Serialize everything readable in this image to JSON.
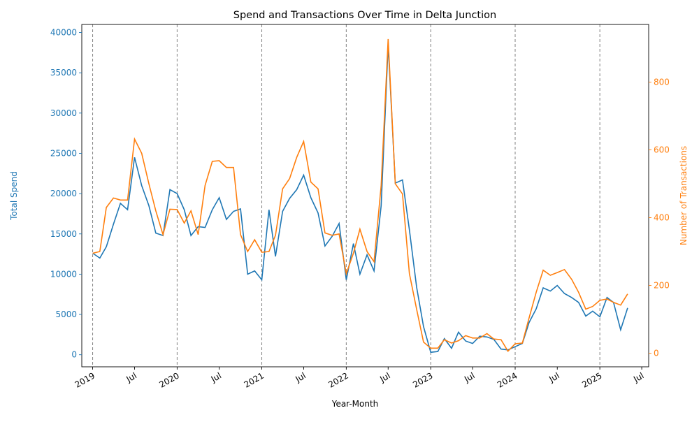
{
  "chart_data": {
    "type": "line",
    "title": "Spend and Transactions Over Time in Delta Junction",
    "xlabel": "Year-Month",
    "ylabel_left": "Total Spend",
    "ylabel_right": "Number of Transactions",
    "ylim_left": [
      -1500,
      41000
    ],
    "ylim_right": [
      -40,
      970
    ],
    "xlim": [
      "2018-11-15",
      "2025-07-31"
    ],
    "x_ticks": [
      {
        "date": "2019-01-01",
        "label": "2019"
      },
      {
        "date": "2019-07-01",
        "label": "Jul"
      },
      {
        "date": "2020-01-01",
        "label": "2020"
      },
      {
        "date": "2020-07-01",
        "label": "Jul"
      },
      {
        "date": "2021-01-01",
        "label": "2021"
      },
      {
        "date": "2021-07-01",
        "label": "Jul"
      },
      {
        "date": "2022-01-01",
        "label": "2022"
      },
      {
        "date": "2022-07-01",
        "label": "Jul"
      },
      {
        "date": "2023-01-01",
        "label": "2023"
      },
      {
        "date": "2023-07-01",
        "label": "Jul"
      },
      {
        "date": "2024-01-01",
        "label": "2024"
      },
      {
        "date": "2024-07-01",
        "label": "Jul"
      },
      {
        "date": "2025-01-01",
        "label": "2025"
      },
      {
        "date": "2025-07-01",
        "label": "Jul"
      }
    ],
    "y_ticks_left": [
      0,
      5000,
      10000,
      15000,
      20000,
      25000,
      30000,
      35000,
      40000
    ],
    "y_ticks_right": [
      0,
      200,
      400,
      600,
      800
    ],
    "year_lines": [
      "2019-01-01",
      "2020-01-01",
      "2021-01-01",
      "2022-01-01",
      "2023-01-01",
      "2024-01-01",
      "2025-01-01"
    ],
    "colors": {
      "spend": "#1f77b4",
      "transactions": "#ff7f0e",
      "year_line": "#808080"
    },
    "x": [
      "2019-01",
      "2019-02",
      "2019-03",
      "2019-04",
      "2019-05",
      "2019-06",
      "2019-07",
      "2019-08",
      "2019-09",
      "2019-10",
      "2019-11",
      "2019-12",
      "2020-01",
      "2020-02",
      "2020-03",
      "2020-04",
      "2020-05",
      "2020-06",
      "2020-07",
      "2020-08",
      "2020-09",
      "2020-10",
      "2020-11",
      "2020-12",
      "2021-01",
      "2021-02",
      "2021-03",
      "2021-04",
      "2021-05",
      "2021-06",
      "2021-07",
      "2021-08",
      "2021-09",
      "2021-10",
      "2021-11",
      "2021-12",
      "2022-01",
      "2022-02",
      "2022-03",
      "2022-04",
      "2022-05",
      "2022-06",
      "2022-07",
      "2022-08",
      "2022-09",
      "2022-10",
      "2022-11",
      "2022-12",
      "2023-01",
      "2023-02",
      "2023-03",
      "2023-04",
      "2023-05",
      "2023-06",
      "2023-07",
      "2023-08",
      "2023-09",
      "2023-10",
      "2023-11",
      "2023-12",
      "2024-01",
      "2024-02",
      "2024-03",
      "2024-04",
      "2024-05",
      "2024-06",
      "2024-07",
      "2024-08",
      "2024-09",
      "2024-10",
      "2024-11",
      "2024-12",
      "2025-01",
      "2025-02",
      "2025-03",
      "2025-04",
      "2025-05"
    ],
    "series": [
      {
        "name": "Total Spend",
        "axis": "left",
        "values": [
          12600,
          12000,
          13400,
          16200,
          18800,
          18000,
          24500,
          21000,
          18500,
          15100,
          14800,
          20500,
          20000,
          18000,
          14800,
          15900,
          15800,
          18000,
          19500,
          16800,
          17800,
          18100,
          10000,
          10400,
          9300,
          18000,
          12200,
          17800,
          19400,
          20500,
          22300,
          19500,
          17600,
          13500,
          14700,
          16300,
          9300,
          13800,
          10000,
          12400,
          10400,
          18500,
          38500,
          21300,
          21700,
          15500,
          8400,
          3500,
          300,
          400,
          2000,
          800,
          2800,
          1700,
          1400,
          2300,
          2200,
          1900,
          700,
          600,
          1000,
          1400,
          4000,
          5700,
          8300,
          7900,
          8600,
          7600,
          7100,
          6500,
          4800,
          5400,
          4700,
          7100,
          6500,
          3100,
          5800
        ]
      },
      {
        "name": "Number of Transactions",
        "axis": "right",
        "values": [
          295,
          300,
          430,
          458,
          452,
          452,
          632,
          590,
          500,
          420,
          350,
          425,
          424,
          384,
          420,
          350,
          495,
          566,
          568,
          548,
          548,
          350,
          300,
          335,
          298,
          300,
          348,
          485,
          515,
          578,
          625,
          505,
          485,
          355,
          348,
          352,
          235,
          295,
          366,
          300,
          270,
          495,
          927,
          500,
          470,
          235,
          130,
          33,
          15,
          15,
          40,
          30,
          37,
          52,
          45,
          45,
          58,
          42,
          40,
          6,
          28,
          30,
          104,
          180,
          245,
          230,
          238,
          247,
          218,
          180,
          130,
          138,
          156,
          160,
          150,
          142,
          175
        ]
      }
    ]
  }
}
